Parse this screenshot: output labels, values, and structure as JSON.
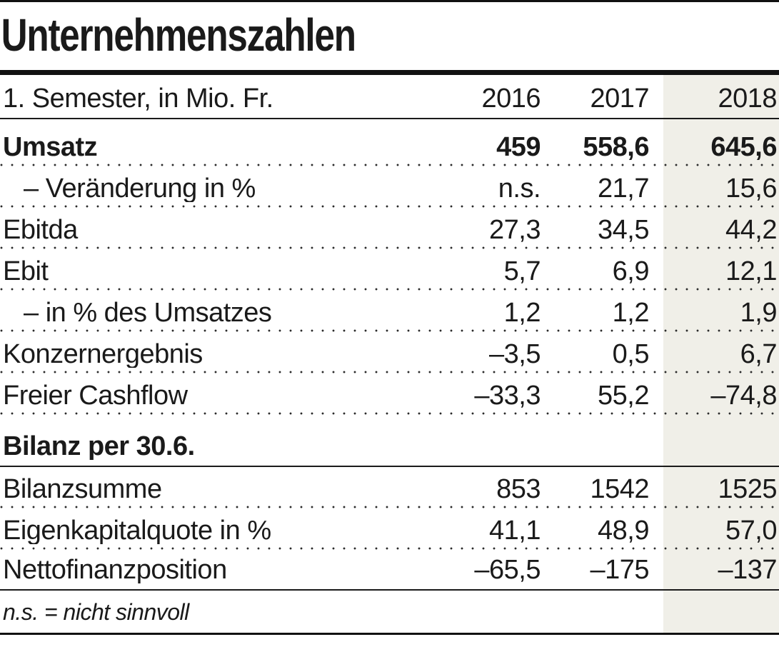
{
  "title": "Unternehmenszahlen",
  "colors": {
    "highlight_column_bg": "#f0efe8",
    "text": "#1a1a1a",
    "rule": "#111111"
  },
  "chart_data": {
    "type": "table",
    "title": "Unternehmenszahlen",
    "subtitle": "1. Semester, in Mio. Fr.",
    "columns": [
      "2016",
      "2017",
      "2018"
    ],
    "highlight_column": "2018",
    "sections": [
      {
        "header": null,
        "rows": [
          {
            "label": "Umsatz",
            "bold": true,
            "indent": false,
            "values": [
              "459",
              "558,6",
              "645,6"
            ]
          },
          {
            "label": "– Veränderung in %",
            "bold": false,
            "indent": true,
            "values": [
              "n.s.",
              "21,7",
              "15,6"
            ]
          },
          {
            "label": "Ebitda",
            "bold": false,
            "indent": false,
            "values": [
              "27,3",
              "34,5",
              "44,2"
            ]
          },
          {
            "label": "Ebit",
            "bold": false,
            "indent": false,
            "values": [
              "5,7",
              "6,9",
              "12,1"
            ]
          },
          {
            "label": "– in % des Umsatzes",
            "bold": false,
            "indent": true,
            "values": [
              "1,2",
              "1,2",
              "1,9"
            ]
          },
          {
            "label": "Konzernergebnis",
            "bold": false,
            "indent": false,
            "values": [
              "–3,5",
              "0,5",
              "6,7"
            ]
          },
          {
            "label": "Freier Cashflow",
            "bold": false,
            "indent": false,
            "values": [
              "–33,3",
              "55,2",
              "–74,8"
            ]
          }
        ]
      },
      {
        "header": "Bilanz per 30.6.",
        "rows": [
          {
            "label": "Bilanzsumme",
            "bold": false,
            "indent": false,
            "values": [
              "853",
              "1542",
              "1525"
            ]
          },
          {
            "label": "Eigenkapitalquote in %",
            "bold": false,
            "indent": false,
            "values": [
              "41,1",
              "48,9",
              "57,0"
            ]
          },
          {
            "label": "Nettofinanzposition",
            "bold": false,
            "indent": false,
            "values": [
              "–65,5",
              "–175",
              "–137"
            ]
          }
        ]
      }
    ],
    "footnote": "n.s. = nicht sinnvoll"
  }
}
